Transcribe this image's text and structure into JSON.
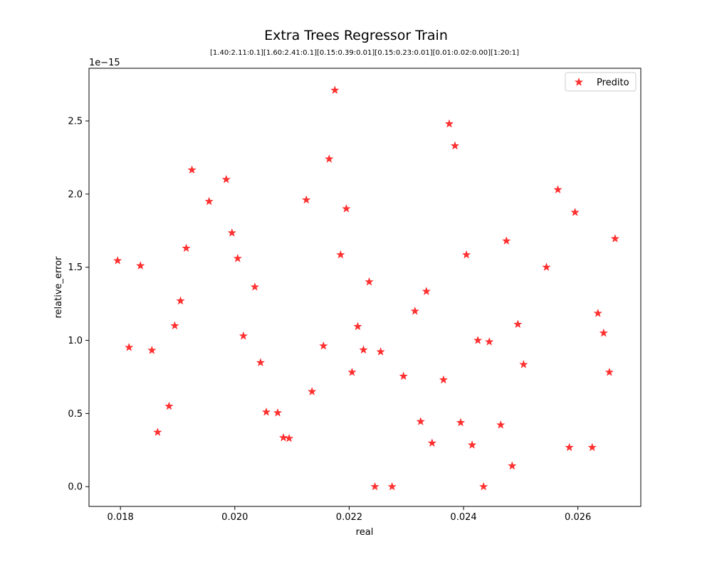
{
  "chart_data": {
    "type": "scatter",
    "title": "Extra Trees Regressor Train",
    "subtitle": "[1.40:2.11:0.1][1.60:2.41:0.1][0.15:0.39:0.01][0.15:0.23:0.01][0.01:0.02:0.00][1:20:1]",
    "xlabel": "real",
    "ylabel": "relative_error",
    "y_offset_label": "1e−15",
    "xlim": [
      0.01745,
      0.0271
    ],
    "ylim": [
      -0.135,
      2.86
    ],
    "x_ticks": [
      0.018,
      0.02,
      0.022,
      0.024,
      0.026
    ],
    "x_tick_labels": [
      "0.018",
      "0.020",
      "0.022",
      "0.024",
      "0.026"
    ],
    "y_ticks": [
      0.0,
      0.5,
      1.0,
      1.5,
      2.0,
      2.5
    ],
    "y_tick_labels": [
      "0.0",
      "0.5",
      "1.0",
      "1.5",
      "2.0",
      "2.5"
    ],
    "legend_position": "top-right",
    "grid": false,
    "series": [
      {
        "name": "Predito",
        "color": "#ff0000",
        "marker": "star",
        "points": [
          [
            0.01795,
            1.545
          ],
          [
            0.01815,
            0.952
          ],
          [
            0.01835,
            1.51
          ],
          [
            0.01855,
            0.932
          ],
          [
            0.01865,
            0.372
          ],
          [
            0.01885,
            0.55
          ],
          [
            0.01895,
            1.1
          ],
          [
            0.01905,
            1.27
          ],
          [
            0.01915,
            1.63
          ],
          [
            0.01925,
            2.165
          ],
          [
            0.01955,
            1.95
          ],
          [
            0.01985,
            2.1
          ],
          [
            0.01995,
            1.735
          ],
          [
            0.02005,
            1.56
          ],
          [
            0.02015,
            1.03
          ],
          [
            0.02035,
            1.365
          ],
          [
            0.02045,
            0.848
          ],
          [
            0.02055,
            0.51
          ],
          [
            0.02075,
            0.505
          ],
          [
            0.02085,
            0.335
          ],
          [
            0.02095,
            0.33
          ],
          [
            0.02125,
            1.96
          ],
          [
            0.02135,
            0.65
          ],
          [
            0.02155,
            0.962
          ],
          [
            0.02165,
            2.24
          ],
          [
            0.02175,
            2.71
          ],
          [
            0.02185,
            1.585
          ],
          [
            0.02195,
            1.9
          ],
          [
            0.02205,
            0.782
          ],
          [
            0.02215,
            1.095
          ],
          [
            0.02225,
            0.935
          ],
          [
            0.02235,
            1.4
          ],
          [
            0.02245,
            0.0
          ],
          [
            0.02255,
            0.922
          ],
          [
            0.02275,
            0.0
          ],
          [
            0.02295,
            0.755
          ],
          [
            0.02315,
            1.2
          ],
          [
            0.02325,
            0.445
          ],
          [
            0.02335,
            1.335
          ],
          [
            0.02345,
            0.298
          ],
          [
            0.02365,
            0.73
          ],
          [
            0.02375,
            2.48
          ],
          [
            0.02385,
            2.33
          ],
          [
            0.02395,
            0.438
          ],
          [
            0.02405,
            1.585
          ],
          [
            0.02415,
            0.285
          ],
          [
            0.02425,
            1.0
          ],
          [
            0.02435,
            0.0
          ],
          [
            0.02445,
            0.99
          ],
          [
            0.02465,
            0.422
          ],
          [
            0.02475,
            1.68
          ],
          [
            0.02485,
            0.142
          ],
          [
            0.02495,
            1.11
          ],
          [
            0.02505,
            0.835
          ],
          [
            0.02545,
            1.5
          ],
          [
            0.02565,
            2.03
          ],
          [
            0.02585,
            0.268
          ],
          [
            0.02595,
            1.875
          ],
          [
            0.02625,
            0.268
          ],
          [
            0.02635,
            1.185
          ],
          [
            0.02645,
            1.05
          ],
          [
            0.02655,
            0.782
          ],
          [
            0.02665,
            1.695
          ]
        ]
      }
    ]
  }
}
